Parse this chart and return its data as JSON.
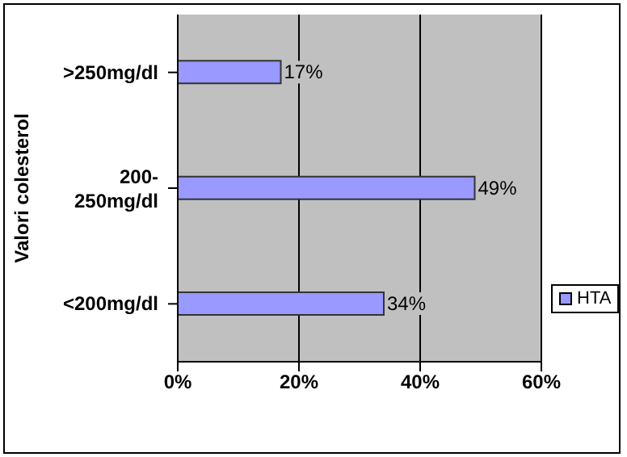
{
  "chart_data": {
    "type": "bar",
    "orientation": "horizontal",
    "ylabel": "Valori colesterol",
    "categories": [
      ">250mg/dl",
      "200-250mg/dl",
      "<200mg/dl"
    ],
    "series": [
      {
        "name": "HTA",
        "color": "#9999ff",
        "values": [
          17,
          49,
          34
        ],
        "value_labels": [
          "17%",
          "49%",
          "34%"
        ]
      }
    ],
    "xlim": [
      0,
      60
    ],
    "xticks": [
      {
        "value": 0,
        "label": "0%"
      },
      {
        "value": 20,
        "label": "20%"
      },
      {
        "value": 40,
        "label": "40%"
      },
      {
        "value": 60,
        "label": "60%"
      }
    ],
    "grid": "x",
    "legend": "right"
  }
}
